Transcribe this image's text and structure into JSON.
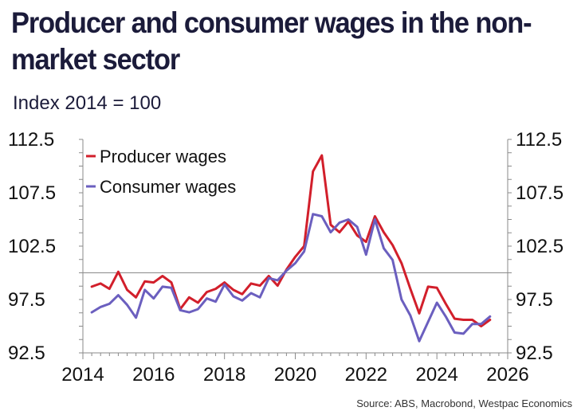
{
  "title": "Producer and consumer wages in the non-market sector",
  "subtitle": "Index 2014 = 100",
  "source": "Source: ABS, Macrobond, Westpac Economics",
  "chart_data": {
    "type": "line",
    "xlabel": "",
    "ylabel": "Index 2014 = 100",
    "xlim": [
      2014,
      2026
    ],
    "ylim": [
      92.5,
      112.5
    ],
    "x_ticks": [
      "2014",
      "2016",
      "2018",
      "2020",
      "2022",
      "2024",
      "2026"
    ],
    "y_ticks": [
      "112.5",
      "107.5",
      "102.5",
      "97.5",
      "92.5"
    ],
    "reference_line": 100,
    "legend_position": "top-left",
    "x": [
      2014.25,
      2014.5,
      2014.75,
      2015.0,
      2015.25,
      2015.5,
      2015.75,
      2016.0,
      2016.25,
      2016.5,
      2016.75,
      2017.0,
      2017.25,
      2017.5,
      2017.75,
      2018.0,
      2018.25,
      2018.5,
      2018.75,
      2019.0,
      2019.25,
      2019.5,
      2019.75,
      2020.0,
      2020.25,
      2020.5,
      2020.75,
      2021.0,
      2021.25,
      2021.5,
      2021.75,
      2022.0,
      2022.25,
      2022.5,
      2022.75,
      2023.0,
      2023.25,
      2023.5,
      2023.75,
      2024.0,
      2024.25,
      2024.5,
      2024.75,
      2025.0,
      2025.25,
      2025.5
    ],
    "series": [
      {
        "name": "Producer wages",
        "color": "#d21f2b",
        "values": [
          98.7,
          99.0,
          98.5,
          100.1,
          98.4,
          97.7,
          99.2,
          99.1,
          99.7,
          99.1,
          96.6,
          97.7,
          97.2,
          98.2,
          98.5,
          99.1,
          98.4,
          98.0,
          99.0,
          98.8,
          99.7,
          98.8,
          100.3,
          101.5,
          102.5,
          109.5,
          111.0,
          104.5,
          103.8,
          104.8,
          103.5,
          102.9,
          105.3,
          103.8,
          102.6,
          100.9,
          98.5,
          96.2,
          98.7,
          98.6,
          97.1,
          95.7,
          95.6,
          95.6,
          95.0,
          95.6
        ]
      },
      {
        "name": "Consumer wages",
        "color": "#6b5fbf",
        "values": [
          96.3,
          96.8,
          97.1,
          97.9,
          97.0,
          95.8,
          98.4,
          97.6,
          98.7,
          98.6,
          96.5,
          96.3,
          96.6,
          97.6,
          97.3,
          98.9,
          97.8,
          97.4,
          98.1,
          97.7,
          99.5,
          99.3,
          100.2,
          100.9,
          102.0,
          105.5,
          105.3,
          103.8,
          104.7,
          105.0,
          104.3,
          101.7,
          105.0,
          102.3,
          101.2,
          97.5,
          96.0,
          93.6,
          95.4,
          97.2,
          95.9,
          94.4,
          94.3,
          95.2,
          95.2,
          95.9
        ]
      }
    ]
  }
}
